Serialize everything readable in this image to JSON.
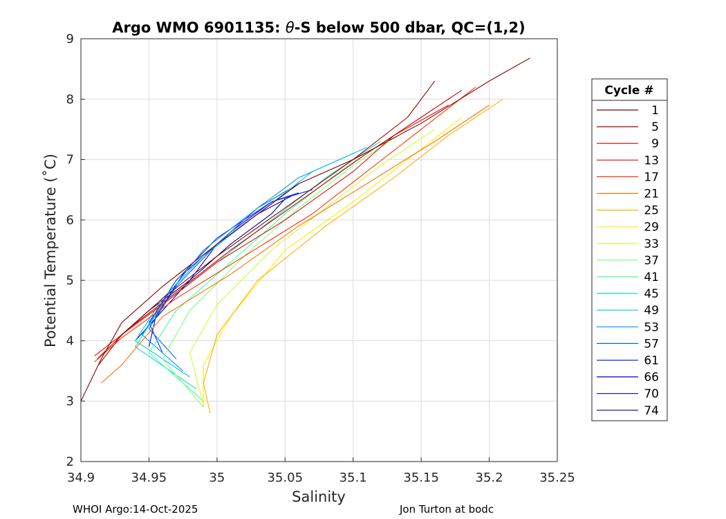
{
  "chart_data": {
    "type": "line",
    "title": "Argo WMO 6901135: θ-S below 500 dbar,  QC=(1,2)",
    "title_prefix": "Argo WMO 6901135: ",
    "title_theta": "θ",
    "title_suffix": "-S below 500 dbar,  QC=(1,2)",
    "xlabel": "Salinity",
    "ylabel": "Potential Temperature (˚C)",
    "xlim": [
      34.9,
      35.25
    ],
    "ylim": [
      2,
      9
    ],
    "x_ticks": [
      34.9,
      34.95,
      35,
      35.05,
      35.1,
      35.15,
      35.2,
      35.25
    ],
    "x_tick_labels": [
      "34.9",
      "34.95",
      "35",
      "35.05",
      "35.1",
      "35.15",
      "35.2",
      "35.25"
    ],
    "y_ticks": [
      2,
      3,
      4,
      5,
      6,
      7,
      8,
      9
    ],
    "y_tick_labels": [
      "2",
      "3",
      "4",
      "5",
      "6",
      "7",
      "8",
      "9"
    ],
    "grid": true,
    "legend": {
      "title": "Cycle #",
      "placement": "right",
      "entries": [
        {
          "label": "1",
          "color": "#800000"
        },
        {
          "label": "5",
          "color": "#9a0000"
        },
        {
          "label": "9",
          "color": "#c00000"
        },
        {
          "label": "13",
          "color": "#e01000"
        },
        {
          "label": "17",
          "color": "#ff3000"
        },
        {
          "label": "21",
          "color": "#ff7000"
        },
        {
          "label": "25",
          "color": "#ffb000"
        },
        {
          "label": "29",
          "color": "#ffee00"
        },
        {
          "label": "33",
          "color": "#c8ff30"
        },
        {
          "label": "37",
          "color": "#80ff80"
        },
        {
          "label": "41",
          "color": "#40ffa0"
        },
        {
          "label": "45",
          "color": "#10e0c0"
        },
        {
          "label": "49",
          "color": "#00c0ff"
        },
        {
          "label": "53",
          "color": "#0090ff"
        },
        {
          "label": "57",
          "color": "#0060ff"
        },
        {
          "label": "61",
          "color": "#0030ff"
        },
        {
          "label": "66",
          "color": "#0000e0"
        },
        {
          "label": "70",
          "color": "#0000b0"
        },
        {
          "label": "74",
          "color": "#000080"
        }
      ]
    },
    "series": [
      {
        "name": "1",
        "color": "#800000",
        "x": [
          34.9,
          34.915,
          34.93,
          34.96,
          35.0,
          35.06,
          35.1,
          35.15,
          35.2,
          35.23
        ],
        "y": [
          3.0,
          3.7,
          4.3,
          4.9,
          5.6,
          6.6,
          7.0,
          7.6,
          8.3,
          8.68
        ]
      },
      {
        "name": "5",
        "color": "#9a0000",
        "x": [
          34.913,
          34.93,
          34.96,
          35.0,
          35.05,
          35.1,
          35.14,
          35.16
        ],
        "y": [
          3.6,
          4.1,
          4.7,
          5.4,
          6.2,
          7.0,
          7.7,
          8.3
        ]
      },
      {
        "name": "9",
        "color": "#c00000",
        "x": [
          34.912,
          34.935,
          34.97,
          35.01,
          35.06,
          35.11,
          35.15,
          35.18
        ],
        "y": [
          3.7,
          4.2,
          4.8,
          5.5,
          6.3,
          7.1,
          7.7,
          8.15
        ]
      },
      {
        "name": "13",
        "color": "#e01000",
        "x": [
          34.91,
          34.93,
          34.96,
          35.0,
          35.05,
          35.1,
          35.13,
          35.17
        ],
        "y": [
          3.75,
          4.1,
          4.6,
          5.3,
          6.0,
          6.8,
          7.4,
          7.9
        ]
      },
      {
        "name": "17",
        "color": "#ff3000",
        "x": [
          34.91,
          34.93,
          34.97,
          35.02,
          35.07,
          35.11,
          35.15,
          35.19
        ],
        "y": [
          3.65,
          4.05,
          4.7,
          5.4,
          6.1,
          6.8,
          7.5,
          8.2
        ]
      },
      {
        "name": "21",
        "color": "#ff7000",
        "x": [
          34.915,
          34.93,
          34.96,
          35.01,
          35.06,
          35.11,
          35.16,
          35.2
        ],
        "y": [
          3.3,
          3.6,
          4.4,
          5.1,
          5.9,
          6.6,
          7.3,
          7.9
        ]
      },
      {
        "name": "25",
        "color": "#ffb000",
        "x": [
          34.995,
          34.99,
          35.0,
          35.03,
          35.08,
          35.13,
          35.17,
          35.21
        ],
        "y": [
          2.8,
          3.3,
          4.1,
          5.0,
          5.9,
          6.7,
          7.4,
          8.0
        ]
      },
      {
        "name": "29",
        "color": "#ffee00",
        "x": [
          34.99,
          34.99,
          35.01,
          35.05,
          35.1,
          35.14,
          35.18
        ],
        "y": [
          2.9,
          3.6,
          4.4,
          5.5,
          6.3,
          7.0,
          7.7
        ]
      },
      {
        "name": "33",
        "color": "#c8ff30",
        "x": [
          34.99,
          34.98,
          35.0,
          35.04,
          35.08,
          35.12,
          35.16
        ],
        "y": [
          2.95,
          3.8,
          4.6,
          5.5,
          6.2,
          6.9,
          7.5
        ]
      },
      {
        "name": "37",
        "color": "#80ff80",
        "x": [
          34.99,
          34.96,
          34.98,
          35.02,
          35.06,
          35.1,
          35.14
        ],
        "y": [
          2.9,
          3.7,
          4.5,
          5.4,
          6.2,
          6.9,
          7.5
        ]
      },
      {
        "name": "41",
        "color": "#40ffa0",
        "x": [
          34.99,
          34.95,
          34.97,
          35.01,
          35.05,
          35.09,
          35.13
        ],
        "y": [
          3.0,
          3.8,
          4.5,
          5.3,
          6.1,
          6.8,
          7.4
        ]
      },
      {
        "name": "45",
        "color": "#10e0c0",
        "x": [
          34.985,
          34.94,
          34.96,
          35.0,
          35.04,
          35.08,
          35.12
        ],
        "y": [
          3.2,
          3.9,
          4.6,
          5.3,
          6.0,
          6.7,
          7.3
        ]
      },
      {
        "name": "49",
        "color": "#00c0ff",
        "x": [
          34.98,
          34.94,
          34.96,
          34.99,
          35.03,
          35.07,
          35.11
        ],
        "y": [
          3.4,
          4.0,
          4.7,
          5.4,
          6.1,
          6.8,
          7.2
        ]
      },
      {
        "name": "53",
        "color": "#0090ff",
        "x": [
          34.975,
          34.945,
          34.965,
          34.99,
          35.03,
          35.06,
          35.1
        ],
        "y": [
          3.5,
          4.1,
          4.8,
          5.5,
          6.2,
          6.7,
          7.1
        ]
      },
      {
        "name": "57",
        "color": "#0060ff",
        "x": [
          34.97,
          34.95,
          34.97,
          35.0,
          35.03,
          35.06
        ],
        "y": [
          3.7,
          4.2,
          4.9,
          5.6,
          6.2,
          6.6
        ]
      },
      {
        "name": "61",
        "color": "#0030ff",
        "x": [
          34.96,
          34.95,
          34.97,
          35.0,
          35.04,
          35.07
        ],
        "y": [
          3.8,
          4.3,
          5.0,
          5.7,
          6.3,
          6.5
        ]
      },
      {
        "name": "66",
        "color": "#0000e0",
        "x": [
          34.95,
          34.955,
          34.975,
          35.01,
          35.04,
          35.06
        ],
        "y": [
          3.9,
          4.4,
          5.1,
          5.8,
          6.3,
          6.45
        ]
      },
      {
        "name": "70",
        "color": "#0000b0",
        "x": [
          34.94,
          34.96,
          34.98,
          35.0,
          35.03,
          35.055
        ],
        "y": [
          4.0,
          4.5,
          5.0,
          5.6,
          6.1,
          6.4
        ]
      },
      {
        "name": "74",
        "color": "#000080",
        "x": [
          34.93,
          34.95,
          34.98,
          35.01,
          35.04,
          35.05
        ],
        "y": [
          4.1,
          4.5,
          5.0,
          5.6,
          6.1,
          6.35
        ]
      }
    ]
  },
  "footer": {
    "left": "WHOI Argo:14-Oct-2025",
    "right": "Jon Turton at bodc"
  }
}
